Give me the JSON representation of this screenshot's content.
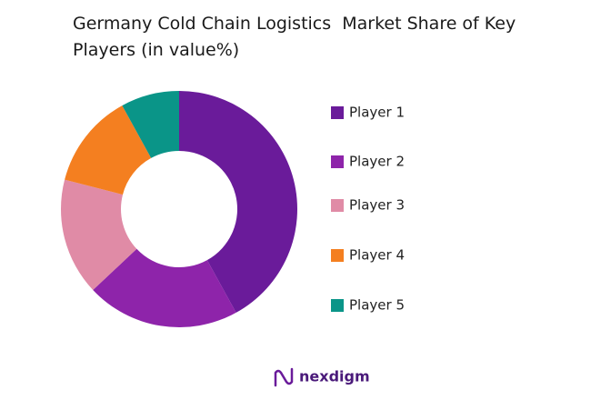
{
  "chart_data": {
    "type": "donut",
    "title": "Germany Cold Chain Logistics  Market Share of Key Players (in value%)",
    "categories": [
      "Player 1",
      "Player 2",
      "Player 3",
      "Player 4",
      "Player 5"
    ],
    "values": [
      42,
      21,
      16,
      13,
      8
    ],
    "colors": [
      "#6a1b9a",
      "#8e24aa",
      "#e08ba6",
      "#f47f20",
      "#0a9588"
    ],
    "legend": "right"
  },
  "logo_text": "nexdigm"
}
